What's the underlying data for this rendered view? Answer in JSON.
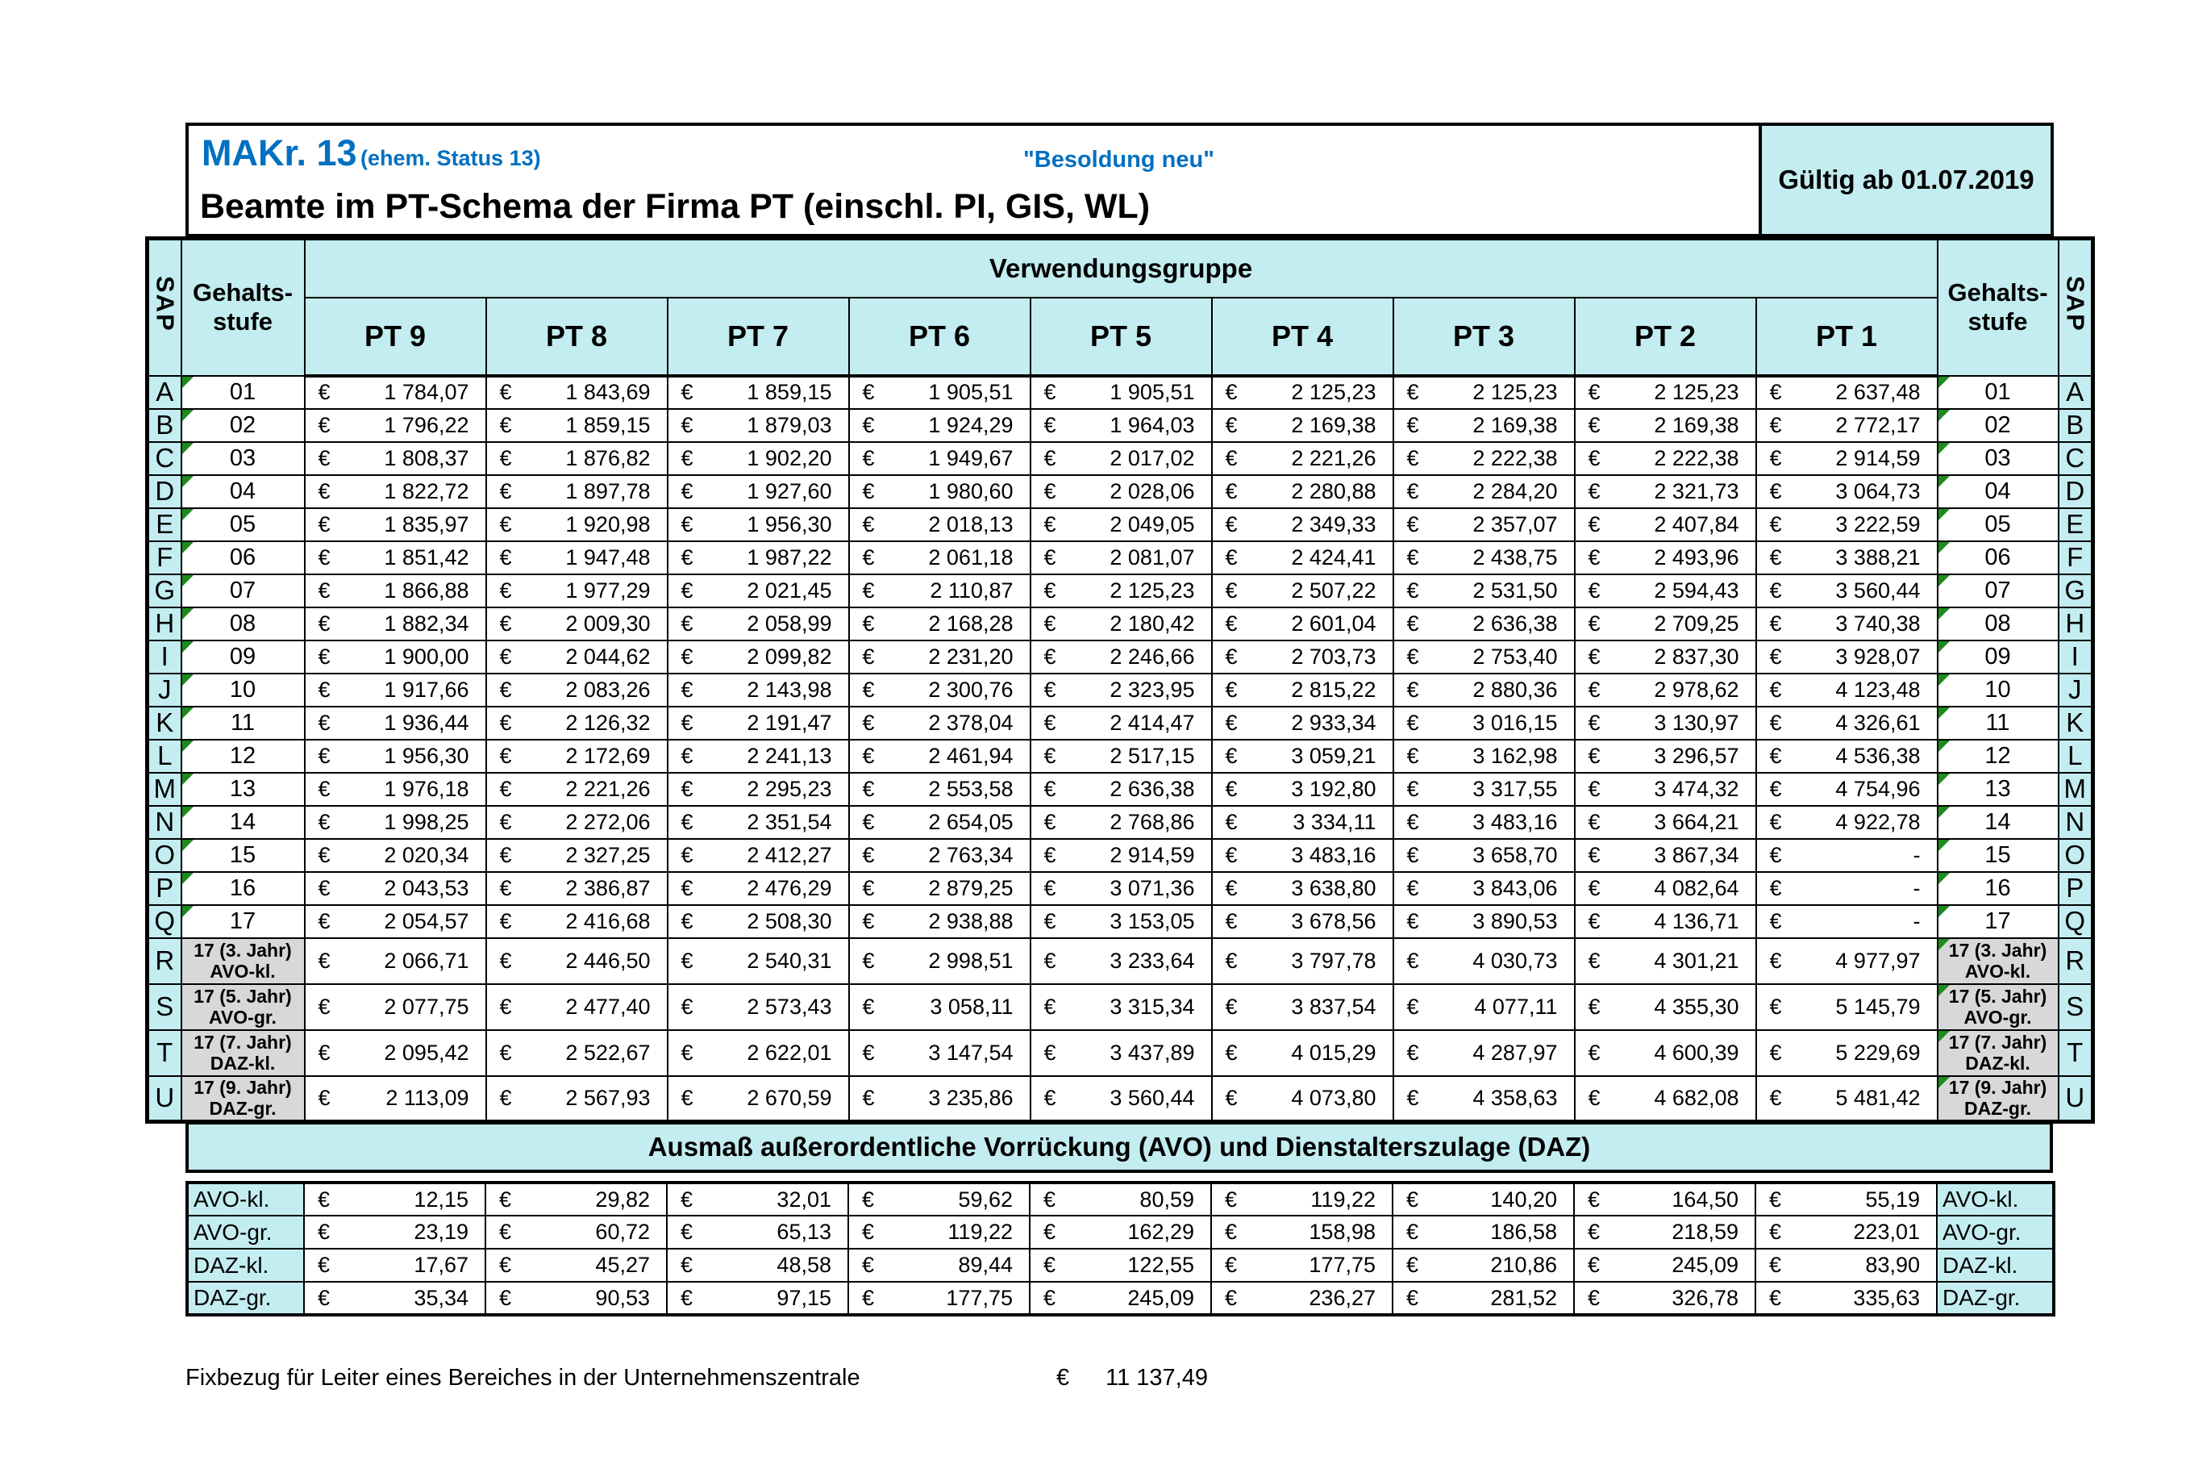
{
  "colors": {
    "accent_cyan": "#C3EDF0",
    "title_blue": "#0070C0",
    "label_gray": "#D8D8D8",
    "marker_green": "#1E8A1E"
  },
  "header": {
    "title_main": "MAKr. 13",
    "title_suffix": "(ehem. Status 13)",
    "besoldung": "\"Besoldung neu\"",
    "subtitle": "Beamte im PT-Schema der Firma PT (einschl. PI, GIS, WL)",
    "valid_from": "Gültig ab 01.07.2019"
  },
  "table": {
    "sap_label": "SAP",
    "stufe_label_1": "Gehalts-",
    "stufe_label_2": "stufe",
    "group_header": "Verwendungsgruppe",
    "currency": "€",
    "columns": [
      "PT 9",
      "PT 8",
      "PT 7",
      "PT 6",
      "PT 5",
      "PT 4",
      "PT 3",
      "PT 2",
      "PT 1"
    ],
    "rows": [
      {
        "sap": "A",
        "stufe": "01",
        "values": [
          "1 784,07",
          "1 843,69",
          "1 859,15",
          "1 905,51",
          "1 905,51",
          "2 125,23",
          "2 125,23",
          "2 125,23",
          "2 637,48"
        ]
      },
      {
        "sap": "B",
        "stufe": "02",
        "values": [
          "1 796,22",
          "1 859,15",
          "1 879,03",
          "1 924,29",
          "1 964,03",
          "2 169,38",
          "2 169,38",
          "2 169,38",
          "2 772,17"
        ]
      },
      {
        "sap": "C",
        "stufe": "03",
        "values": [
          "1 808,37",
          "1 876,82",
          "1 902,20",
          "1 949,67",
          "2 017,02",
          "2 221,26",
          "2 222,38",
          "2 222,38",
          "2 914,59"
        ]
      },
      {
        "sap": "D",
        "stufe": "04",
        "values": [
          "1 822,72",
          "1 897,78",
          "1 927,60",
          "1 980,60",
          "2 028,06",
          "2 280,88",
          "2 284,20",
          "2 321,73",
          "3 064,73"
        ]
      },
      {
        "sap": "E",
        "stufe": "05",
        "values": [
          "1 835,97",
          "1 920,98",
          "1 956,30",
          "2 018,13",
          "2 049,05",
          "2 349,33",
          "2 357,07",
          "2 407,84",
          "3 222,59"
        ]
      },
      {
        "sap": "F",
        "stufe": "06",
        "values": [
          "1 851,42",
          "1 947,48",
          "1 987,22",
          "2 061,18",
          "2 081,07",
          "2 424,41",
          "2 438,75",
          "2 493,96",
          "3 388,21"
        ]
      },
      {
        "sap": "G",
        "stufe": "07",
        "values": [
          "1 866,88",
          "1 977,29",
          "2 021,45",
          "2 110,87",
          "2 125,23",
          "2 507,22",
          "2 531,50",
          "2 594,43",
          "3 560,44"
        ]
      },
      {
        "sap": "H",
        "stufe": "08",
        "values": [
          "1 882,34",
          "2 009,30",
          "2 058,99",
          "2 168,28",
          "2 180,42",
          "2 601,04",
          "2 636,38",
          "2 709,25",
          "3 740,38"
        ]
      },
      {
        "sap": "I",
        "stufe": "09",
        "values": [
          "1 900,00",
          "2 044,62",
          "2 099,82",
          "2 231,20",
          "2 246,66",
          "2 703,73",
          "2 753,40",
          "2 837,30",
          "3 928,07"
        ]
      },
      {
        "sap": "J",
        "stufe": "10",
        "values": [
          "1 917,66",
          "2 083,26",
          "2 143,98",
          "2 300,76",
          "2 323,95",
          "2 815,22",
          "2 880,36",
          "2 978,62",
          "4 123,48"
        ]
      },
      {
        "sap": "K",
        "stufe": "11",
        "values": [
          "1 936,44",
          "2 126,32",
          "2 191,47",
          "2 378,04",
          "2 414,47",
          "2 933,34",
          "3 016,15",
          "3 130,97",
          "4 326,61"
        ]
      },
      {
        "sap": "L",
        "stufe": "12",
        "values": [
          "1 956,30",
          "2 172,69",
          "2 241,13",
          "2 461,94",
          "2 517,15",
          "3 059,21",
          "3 162,98",
          "3 296,57",
          "4 536,38"
        ]
      },
      {
        "sap": "M",
        "stufe": "13",
        "values": [
          "1 976,18",
          "2 221,26",
          "2 295,23",
          "2 553,58",
          "2 636,38",
          "3 192,80",
          "3 317,55",
          "3 474,32",
          "4 754,96"
        ]
      },
      {
        "sap": "N",
        "stufe": "14",
        "values": [
          "1 998,25",
          "2 272,06",
          "2 351,54",
          "2 654,05",
          "2 768,86",
          "3 334,11",
          "3 483,16",
          "3 664,21",
          "4 922,78"
        ]
      },
      {
        "sap": "O",
        "stufe": "15",
        "values": [
          "2 020,34",
          "2 327,25",
          "2 412,27",
          "2 763,34",
          "2 914,59",
          "3 483,16",
          "3 658,70",
          "3 867,34",
          "-"
        ]
      },
      {
        "sap": "P",
        "stufe": "16",
        "values": [
          "2 043,53",
          "2 386,87",
          "2 476,29",
          "2 879,25",
          "3 071,36",
          "3 638,80",
          "3 843,06",
          "4 082,64",
          "-"
        ]
      },
      {
        "sap": "Q",
        "stufe": "17",
        "values": [
          "2 054,57",
          "2 416,68",
          "2 508,30",
          "2 938,88",
          "3 153,05",
          "3 678,56",
          "3 890,53",
          "4 136,71",
          "-"
        ]
      },
      {
        "sap": "R",
        "stufe": "17 (3. Jahr)",
        "stufe2": "AVO-kl.",
        "values": [
          "2 066,71",
          "2 446,50",
          "2 540,31",
          "2 998,51",
          "3 233,64",
          "3 797,78",
          "4 030,73",
          "4 301,21",
          "4 977,97"
        ]
      },
      {
        "sap": "S",
        "stufe": "17 (5. Jahr)",
        "stufe2": "AVO-gr.",
        "values": [
          "2 077,75",
          "2 477,40",
          "2 573,43",
          "3 058,11",
          "3 315,34",
          "3 837,54",
          "4 077,11",
          "4 355,30",
          "5 145,79"
        ]
      },
      {
        "sap": "T",
        "stufe": "17 (7. Jahr)",
        "stufe2": "DAZ-kl.",
        "values": [
          "2 095,42",
          "2 522,67",
          "2 622,01",
          "3 147,54",
          "3 437,89",
          "4 015,29",
          "4 287,97",
          "4 600,39",
          "5 229,69"
        ]
      },
      {
        "sap": "U",
        "stufe": "17 (9. Jahr)",
        "stufe2": "DAZ-gr.",
        "values": [
          "2 113,09",
          "2 567,93",
          "2 670,59",
          "3 235,86",
          "3 560,44",
          "4 073,80",
          "4 358,63",
          "4 682,08",
          "5 481,42"
        ]
      }
    ]
  },
  "avo": {
    "title": "Ausmaß außerordentliche Vorrückung (AVO) und Dienstalterszulage (DAZ)",
    "rows": [
      {
        "label": "AVO-kl.",
        "values": [
          "12,15",
          "29,82",
          "32,01",
          "59,62",
          "80,59",
          "119,22",
          "140,20",
          "164,50",
          "55,19"
        ]
      },
      {
        "label": "AVO-gr.",
        "values": [
          "23,19",
          "60,72",
          "65,13",
          "119,22",
          "162,29",
          "158,98",
          "186,58",
          "218,59",
          "223,01"
        ]
      },
      {
        "label": "DAZ-kl.",
        "values": [
          "17,67",
          "45,27",
          "48,58",
          "89,44",
          "122,55",
          "177,75",
          "210,86",
          "245,09",
          "83,90"
        ]
      },
      {
        "label": "DAZ-gr.",
        "values": [
          "35,34",
          "90,53",
          "97,15",
          "177,75",
          "245,09",
          "236,27",
          "281,52",
          "326,78",
          "335,63"
        ]
      }
    ]
  },
  "footer": {
    "text": "Fixbezug für Leiter eines Bereiches in der Unternehmenszentrale",
    "value": "11 137,49"
  }
}
